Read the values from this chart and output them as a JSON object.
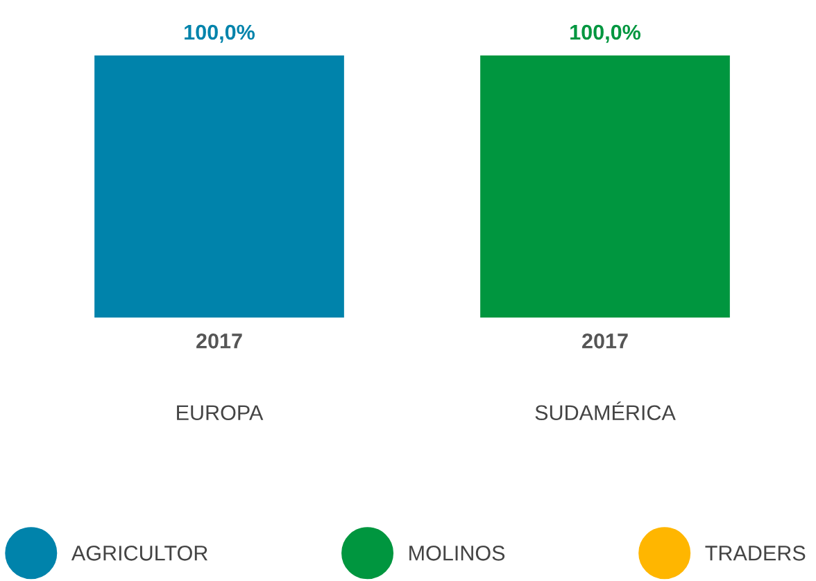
{
  "chart_data": {
    "type": "bar",
    "categories": [
      "2017",
      "2017"
    ],
    "series": [
      {
        "name": "AGRICULTOR",
        "color": "#0083ab",
        "values": [
          100,
          null
        ],
        "value_labels": [
          "100,0%",
          null
        ]
      },
      {
        "name": "MOLINOS",
        "color": "#00963f",
        "values": [
          null,
          100
        ],
        "value_labels": [
          null,
          "100,0%"
        ]
      },
      {
        "name": "TRADERS",
        "color": "#ffb600",
        "values": [
          null,
          null
        ],
        "value_labels": [
          null,
          null
        ]
      }
    ],
    "annotations": [
      "EUROPA",
      "SUDAMÉRICA"
    ],
    "legend": "bottom",
    "grid": false,
    "tick_labels": "x"
  }
}
